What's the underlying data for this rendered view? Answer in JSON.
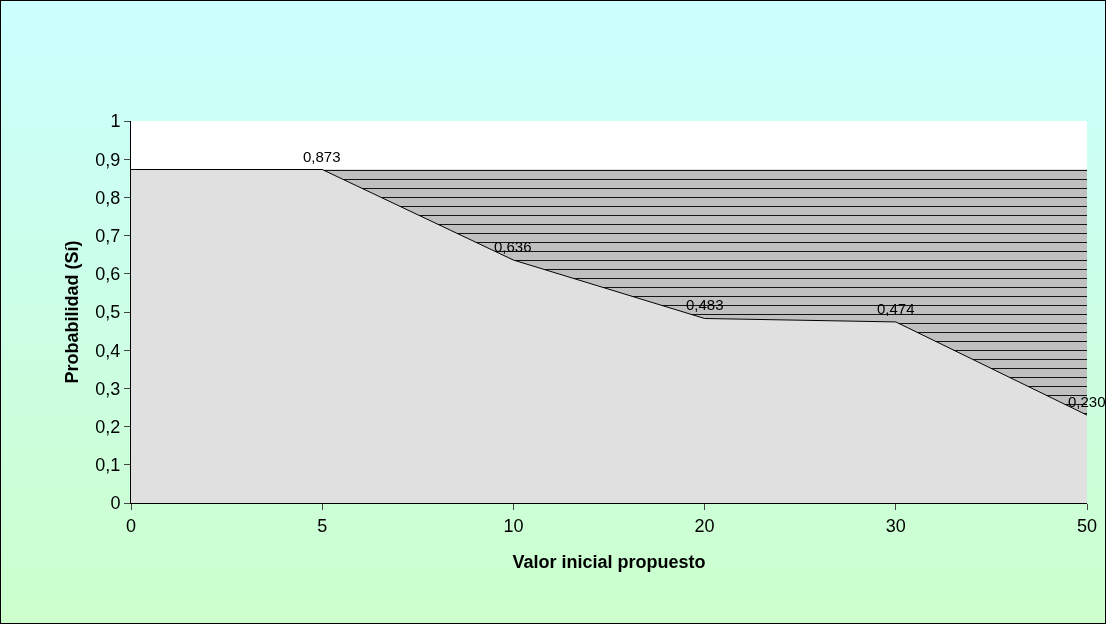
{
  "chart_data": {
    "type": "area",
    "xlabel": "Valor inicial propuesto",
    "ylabel": "Probabilidad (Sí)",
    "categories": [
      "0",
      "5",
      "10",
      "20",
      "30",
      "50"
    ],
    "stacked": true,
    "series": [
      {
        "color": "#e0e0e0",
        "values": [
          0.873,
          0.873,
          0.636,
          0.483,
          0.474,
          0.23
        ],
        "value_labels": [
          null,
          "0,873",
          "0,636",
          "0,483",
          "0,474",
          "0,230"
        ]
      },
      {
        "color": "#c0c0c0",
        "values": [
          0,
          0,
          0.237,
          0.39,
          0.399,
          0.643
        ]
      }
    ],
    "ylim": [
      0,
      1
    ],
    "yticks": [
      {
        "value": 0,
        "label": "0"
      },
      {
        "value": 0.1,
        "label": "0,1"
      },
      {
        "value": 0.2,
        "label": "0,2"
      },
      {
        "value": 0.3,
        "label": "0,3"
      },
      {
        "value": 0.4,
        "label": "0,4"
      },
      {
        "value": 0.5,
        "label": "0,5"
      },
      {
        "value": 0.6,
        "label": "0,6"
      },
      {
        "value": 0.7,
        "label": "0,7"
      },
      {
        "value": 0.8,
        "label": "0,8"
      },
      {
        "value": 0.9,
        "label": "0,9"
      },
      {
        "value": 1,
        "label": "1"
      }
    ],
    "grid": false
  }
}
